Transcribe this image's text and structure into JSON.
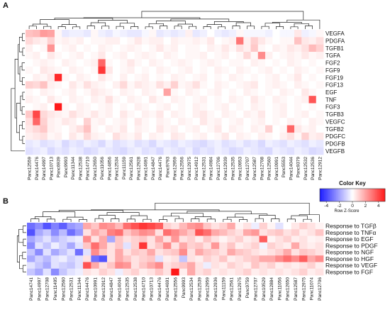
{
  "panels": {
    "a_label": "A",
    "b_label": "B"
  },
  "chart_data": [
    {
      "type": "heatmap",
      "panel": "A",
      "title": "",
      "rows": [
        "VEGFA",
        "PDGFA",
        "TGFB1",
        "TGFA",
        "FGF2",
        "FGF9",
        "FGF19",
        "FGF13",
        "EGF",
        "TNF",
        "FGF3",
        "TGFB3",
        "VEGFC",
        "TGFB2",
        "PDGFC",
        "PDGFB",
        "VEGFB"
      ],
      "columns": [
        "Panc12559",
        "Panc14476",
        "Panc14997",
        "Panc10713",
        "Panc6939",
        "Panc9993",
        "Panc11344",
        "Panc12538",
        "Panc14710",
        "Panc12650",
        "Panc11056",
        "Panc14856",
        "Panc12534",
        "Panc11159",
        "Panc12561",
        "Panc12928",
        "Panc14691",
        "Panc14847",
        "Panc14476",
        "Panc9793",
        "Panc12959",
        "Panc12556",
        "Panc12975",
        "Panc14912",
        "Panc12531",
        "Panc14984",
        "Panc12706",
        "Panc12939",
        "Panc12535",
        "Panc10953",
        "Panc12707",
        "Panc12587",
        "Panc12708",
        "Panc12560",
        "Panc10991",
        "Panc5553",
        "Panc14044",
        "Panc9379",
        "Panc12532",
        "Panc12536",
        "Panc12912"
      ],
      "values": [
        [
          0.8,
          0.9,
          1.3,
          1.2,
          0.1,
          -0.3,
          -0.2,
          -0.2,
          -0.3,
          0.1,
          -0.2,
          -0.3,
          -0.1,
          -0.2,
          -0.3,
          -0.3,
          -0.1,
          0.1,
          -0.3,
          -0.2,
          -0.3,
          -0.2,
          0.2,
          -0.3,
          -0.2,
          0.0,
          -0.2,
          -0.3,
          -0.2,
          0.1,
          -0.1,
          -0.1,
          -0.1,
          -0.2,
          0.0,
          -0.1,
          -0.1,
          0.3,
          -0.2,
          -0.1,
          0.1
        ],
        [
          0.5,
          0.3,
          0.2,
          0.6,
          0.1,
          0.2,
          0.1,
          0.2,
          0.0,
          0.1,
          0.1,
          0.2,
          0.2,
          0.0,
          0.1,
          0.3,
          0.1,
          0.2,
          0.2,
          0.0,
          0.2,
          0.1,
          0.1,
          0.2,
          0.1,
          0.3,
          0.0,
          0.1,
          0.2,
          1.8,
          0.2,
          0.6,
          0.3,
          0.1,
          0.0,
          0.1,
          0.1,
          0.8,
          0.3,
          0.2,
          0.4
        ],
        [
          0.2,
          0.0,
          0.1,
          1.4,
          0.0,
          0.1,
          0.2,
          0.0,
          0.1,
          0.0,
          0.2,
          0.1,
          0.0,
          0.1,
          0.2,
          0.1,
          0.0,
          0.1,
          0.3,
          0.1,
          0.2,
          0.0,
          0.1,
          0.1,
          0.0,
          0.2,
          0.1,
          0.3,
          0.1,
          0.4,
          0.2,
          0.7,
          0.1,
          0.0,
          0.2,
          0.1,
          0.3,
          0.2,
          0.4,
          0.9,
          0.6
        ],
        [
          0.1,
          0.2,
          0.0,
          0.3,
          0.1,
          0.0,
          0.1,
          0.2,
          0.0,
          0.1,
          0.3,
          0.0,
          0.1,
          0.2,
          0.0,
          0.1,
          0.2,
          0.1,
          0.0,
          0.2,
          0.1,
          0.0,
          0.1,
          0.1,
          0.2,
          0.0,
          0.1,
          0.2,
          0.0,
          0.1,
          0.5,
          0.1,
          1.5,
          0.2,
          0.0,
          0.1,
          0.2,
          0.1,
          0.3,
          0.1,
          0.2
        ],
        [
          0.0,
          0.1,
          0.2,
          0.1,
          0.0,
          0.2,
          0.1,
          0.0,
          0.1,
          0.2,
          2.0,
          0.1,
          0.0,
          0.1,
          0.3,
          0.1,
          0.0,
          0.2,
          0.1,
          0.0,
          0.1,
          0.2,
          0.1,
          0.0,
          0.1,
          0.2,
          0.1,
          0.0,
          0.1,
          0.1,
          0.0,
          0.2,
          0.1,
          0.0,
          0.1,
          0.0,
          0.2,
          0.1,
          0.0,
          0.1,
          0.0
        ],
        [
          0.1,
          0.0,
          0.3,
          0.2,
          0.1,
          0.0,
          0.2,
          0.1,
          0.0,
          0.1,
          2.6,
          0.3,
          0.0,
          0.1,
          0.2,
          0.0,
          0.1,
          0.0,
          0.2,
          0.1,
          0.0,
          0.1,
          0.2,
          0.0,
          0.1,
          0.0,
          0.2,
          0.1,
          0.0,
          0.2,
          0.1,
          0.0,
          0.1,
          0.2,
          0.0,
          0.1,
          0.0,
          0.2,
          0.1,
          0.0,
          0.1
        ],
        [
          0.0,
          0.2,
          0.1,
          0.3,
          2.8,
          0.1,
          0.0,
          0.2,
          0.1,
          0.0,
          0.3,
          0.1,
          0.0,
          0.2,
          0.0,
          0.1,
          0.2,
          0.0,
          0.1,
          0.0,
          0.2,
          0.1,
          0.0,
          0.1,
          0.2,
          0.0,
          0.1,
          0.0,
          0.2,
          0.1,
          0.0,
          0.1,
          0.0,
          0.1,
          0.2,
          0.0,
          0.1,
          0.3,
          0.0,
          0.1,
          0.0
        ],
        [
          0.6,
          0.5,
          0.8,
          0.2,
          0.1,
          0.0,
          0.3,
          0.1,
          0.4,
          0.2,
          0.1,
          0.0,
          0.2,
          0.5,
          0.1,
          0.3,
          0.2,
          0.1,
          0.4,
          0.2,
          0.6,
          0.1,
          0.2,
          0.4,
          0.1,
          0.0,
          0.2,
          0.1,
          0.0,
          0.1,
          0.2,
          0.3,
          0.0,
          0.1,
          0.2,
          0.1,
          0.0,
          0.2,
          0.1,
          0.0,
          0.1
        ],
        [
          0.1,
          0.0,
          0.2,
          0.1,
          0.0,
          0.1,
          0.2,
          0.0,
          0.1,
          0.3,
          0.2,
          0.1,
          0.0,
          0.2,
          0.1,
          0.0,
          0.2,
          0.1,
          0.0,
          1.2,
          0.1,
          0.0,
          0.2,
          0.1,
          0.0,
          0.1,
          0.2,
          0.0,
          0.1,
          0.0,
          0.2,
          0.1,
          0.0,
          0.1,
          0.0,
          0.2,
          0.1,
          0.0,
          0.3,
          0.1,
          0.0
        ],
        [
          0.2,
          0.1,
          0.0,
          0.3,
          0.1,
          0.0,
          0.2,
          0.1,
          0.0,
          0.2,
          0.1,
          0.4,
          0.1,
          0.0,
          0.2,
          0.1,
          0.0,
          0.3,
          0.1,
          0.0,
          0.2,
          0.1,
          0.0,
          0.1,
          0.2,
          0.0,
          0.1,
          0.0,
          0.2,
          0.1,
          0.0,
          0.3,
          0.1,
          0.0,
          0.2,
          0.1,
          0.0,
          0.1,
          0.2,
          2.2,
          0.0
        ],
        [
          0.0,
          0.1,
          0.2,
          0.0,
          3.0,
          0.1,
          0.0,
          0.2,
          0.1,
          0.0,
          0.1,
          0.2,
          0.0,
          0.1,
          0.0,
          0.2,
          0.1,
          0.0,
          0.1,
          0.2,
          0.0,
          0.1,
          0.0,
          0.2,
          0.1,
          0.0,
          0.1,
          0.2,
          0.0,
          0.1,
          0.0,
          0.2,
          0.1,
          0.0,
          0.1,
          0.2,
          0.0,
          0.1,
          0.0,
          0.1,
          0.0
        ],
        [
          0.7,
          2.4,
          0.5,
          0.3,
          0.2,
          0.1,
          0.4,
          0.2,
          0.1,
          0.3,
          0.1,
          0.2,
          0.0,
          0.3,
          0.1,
          0.0,
          0.2,
          0.1,
          0.3,
          0.0,
          0.2,
          0.1,
          0.0,
          0.2,
          0.3,
          0.1,
          0.0,
          0.2,
          0.1,
          0.0,
          0.2,
          0.1,
          0.3,
          0.0,
          0.1,
          0.2,
          0.0,
          0.1,
          0.2,
          0.0,
          0.1
        ],
        [
          0.4,
          2.0,
          0.6,
          0.2,
          0.1,
          0.3,
          0.2,
          0.0,
          0.6,
          0.1,
          0.2,
          0.0,
          0.1,
          0.2,
          0.0,
          0.3,
          0.1,
          0.0,
          0.2,
          0.1,
          0.0,
          0.2,
          0.1,
          0.0,
          0.3,
          0.1,
          0.2,
          0.0,
          0.1,
          0.2,
          0.0,
          0.1,
          0.2,
          0.0,
          0.1,
          0.0,
          0.2,
          0.1,
          0.0,
          0.2,
          0.1
        ],
        [
          0.3,
          0.5,
          0.7,
          0.2,
          0.1,
          0.0,
          0.2,
          0.4,
          0.8,
          0.1,
          0.0,
          0.2,
          0.1,
          0.3,
          0.0,
          0.2,
          0.1,
          0.0,
          0.3,
          0.1,
          0.2,
          0.0,
          0.1,
          0.2,
          0.0,
          0.1,
          0.3,
          0.0,
          0.2,
          0.1,
          0.0,
          0.2,
          0.1,
          0.6,
          0.0,
          0.1,
          2.0,
          0.3,
          0.1,
          0.2,
          0.0
        ],
        [
          0.2,
          0.3,
          0.4,
          0.1,
          0.2,
          0.0,
          0.3,
          0.1,
          0.5,
          0.2,
          0.1,
          0.0,
          0.4,
          0.2,
          0.1,
          0.3,
          0.0,
          0.2,
          0.1,
          0.0,
          0.3,
          0.2,
          0.0,
          0.1,
          0.2,
          0.0,
          0.1,
          0.3,
          0.0,
          0.2,
          0.1,
          0.0,
          0.2,
          0.1,
          0.0,
          0.2,
          0.4,
          0.1,
          0.6,
          0.2,
          0.3
        ],
        [
          -0.3,
          -0.2,
          -0.4,
          -0.3,
          -0.2,
          -0.5,
          -0.3,
          -0.4,
          -0.2,
          -0.3,
          -0.5,
          -0.2,
          -0.4,
          -0.3,
          -0.2,
          -0.4,
          -0.3,
          -0.5,
          -0.2,
          -0.3,
          -0.4,
          -0.2,
          -0.3,
          -0.4,
          -0.5,
          -0.3,
          -0.2,
          -0.4,
          -0.3,
          -0.2,
          -0.4,
          -0.3,
          -0.5,
          -0.2,
          -0.3,
          -0.4,
          -0.2,
          -0.3,
          -0.4,
          -0.2,
          -0.3
        ],
        [
          -0.4,
          -0.3,
          -0.2,
          -0.5,
          -0.3,
          -0.4,
          -0.2,
          -0.3,
          -0.5,
          -0.4,
          -0.2,
          -0.3,
          -0.4,
          -0.5,
          -0.3,
          -0.2,
          -0.4,
          -0.3,
          -0.5,
          -0.2,
          -0.3,
          -0.4,
          -0.2,
          -0.5,
          -0.3,
          -0.4,
          -0.2,
          -0.3,
          -0.5,
          -0.4,
          -0.2,
          -0.3,
          -0.4,
          -0.5,
          -0.2,
          -0.3,
          -0.4,
          -0.2,
          -0.3,
          -0.5,
          -0.4
        ]
      ]
    },
    {
      "type": "heatmap",
      "panel": "B",
      "title": "",
      "rows": [
        "Response to TGFβ",
        "Response to TNFα",
        "Response to EGF",
        "Response to PDGF",
        "Response to NGF",
        "Response to HGF",
        "Response to VEGF",
        "Response to FGF"
      ],
      "columns": [
        "Panc14741",
        "Panc14997",
        "Panc12708",
        "Panc11495",
        "Panc12560",
        "Panc12531",
        "Panc11344",
        "Panc14476",
        "Panc10991",
        "Panc12912",
        "Panc14847",
        "Panc14044",
        "Panc12535",
        "Panc12538",
        "Panc14710",
        "Panc10713",
        "Panc14476",
        "Panc14691",
        "Panc12556",
        "Panc9993",
        "Panc12534",
        "Panc12539",
        "Panc12959",
        "Panc12936",
        "Panc11159",
        "Panc12561",
        "Panc12975",
        "Panc9759",
        "Panc12707",
        "Panc10529",
        "Panc12884",
        "Panc11056",
        "Panc12650",
        "Panc12587",
        "Panc12975",
        "Panc11074",
        "Panc12706"
      ],
      "values": [
        [
          -2.5,
          -2.0,
          -3.0,
          -2.2,
          -2.8,
          -1.8,
          -1.5,
          1.5,
          1.0,
          2.0,
          1.8,
          1.2,
          2.5,
          3.0,
          3.5,
          3.2,
          2.8,
          0.8,
          0.5,
          1.2,
          1.8,
          2.0,
          1.0,
          0.5,
          0.8,
          1.5,
          0.2,
          0.5,
          -0.3,
          0.8,
          0.2,
          -0.5,
          0.0,
          0.4,
          0.8,
          0.5,
          0.2
        ],
        [
          -3.0,
          -1.5,
          -1.0,
          -2.0,
          -1.2,
          -2.5,
          -1.8,
          0.5,
          1.5,
          1.0,
          2.2,
          2.5,
          1.0,
          1.5,
          2.0,
          1.8,
          0.5,
          2.5,
          2.0,
          1.5,
          1.0,
          3.0,
          2.5,
          1.5,
          1.2,
          0.8,
          0.5,
          1.5,
          1.8,
          0.5,
          0.8,
          1.0,
          0.5,
          0.8,
          0.3,
          0.5,
          1.0
        ],
        [
          -1.5,
          -1.0,
          -0.5,
          -1.2,
          -0.8,
          -0.5,
          -0.3,
          2.0,
          0.5,
          1.5,
          -1.5,
          1.0,
          0.5,
          0.8,
          1.0,
          0.5,
          1.5,
          0.5,
          1.8,
          0.5,
          0.8,
          0.3,
          1.0,
          0.5,
          0.2,
          0.5,
          0.8,
          0.3,
          0.5,
          2.8,
          0.2,
          0.5,
          0.8,
          0.3,
          0.5,
          0.2,
          0.3
        ],
        [
          -2.0,
          -0.5,
          -1.0,
          -0.3,
          -0.8,
          -1.5,
          -0.5,
          1.0,
          2.5,
          1.5,
          0.5,
          1.0,
          -0.5,
          0.8,
          3.5,
          0.5,
          1.0,
          2.0,
          0.5,
          1.5,
          0.8,
          1.0,
          0.5,
          1.8,
          0.5,
          1.0,
          0.3,
          0.5,
          0.8,
          -0.2,
          0.8,
          0.5,
          0.3,
          1.5,
          0.5,
          0.3,
          0.5
        ],
        [
          -1.0,
          -2.0,
          -0.5,
          -1.5,
          -1.0,
          -0.5,
          -2.5,
          -0.5,
          2.0,
          1.0,
          0.5,
          1.5,
          0.5,
          1.0,
          0.8,
          1.5,
          0.5,
          0.8,
          1.0,
          2.0,
          0.5,
          1.5,
          1.0,
          0.8,
          0.5,
          1.5,
          1.0,
          0.8,
          0.5,
          0.3,
          0.5,
          0.8,
          1.5,
          0.5,
          1.0,
          0.8,
          0.5
        ],
        [
          -1.5,
          -0.8,
          -1.2,
          -0.5,
          -0.3,
          -0.8,
          -0.5,
          0.5,
          -2.5,
          -3.0,
          0.5,
          1.5,
          1.0,
          0.5,
          0.8,
          1.0,
          -0.5,
          0.3,
          0.5,
          -1.0,
          0.5,
          0.3,
          0.8,
          0.5,
          1.0,
          0.3,
          0.5,
          0.8,
          1.0,
          1.5,
          1.5,
          2.0,
          2.5,
          2.0,
          2.8,
          1.5,
          2.0
        ],
        [
          -0.5,
          -1.0,
          -1.5,
          -0.5,
          -0.8,
          -1.0,
          -0.5,
          3.0,
          1.5,
          0.5,
          1.0,
          2.0,
          1.8,
          0.5,
          1.0,
          1.5,
          2.0,
          0.5,
          0.8,
          1.0,
          1.5,
          0.5,
          -0.3,
          0.5,
          0.3,
          0.8,
          0.5,
          0.3,
          1.0,
          0.5,
          0.8,
          0.3,
          0.5,
          0.3,
          0.5,
          0.8,
          0.3
        ],
        [
          -1.0,
          -1.5,
          -0.5,
          -2.0,
          -1.0,
          -0.5,
          -0.3,
          0.5,
          0.3,
          0.8,
          0.5,
          -0.3,
          0.5,
          0.8,
          0.3,
          0.5,
          1.0,
          0.5,
          4.0,
          0.3,
          1.5,
          0.5,
          0.8,
          0.3,
          0.5,
          0.3,
          0.5,
          0.8,
          0.3,
          0.5,
          0.3,
          0.5,
          0.3,
          0.5,
          0.8,
          0.3,
          0.5
        ]
      ],
      "color_key": {
        "title": "Color Key",
        "subtitle": "Row Z-Score",
        "ticks": [
          "-4",
          "-2",
          "0",
          "2",
          "4"
        ],
        "range": [
          -5,
          5
        ]
      }
    }
  ]
}
